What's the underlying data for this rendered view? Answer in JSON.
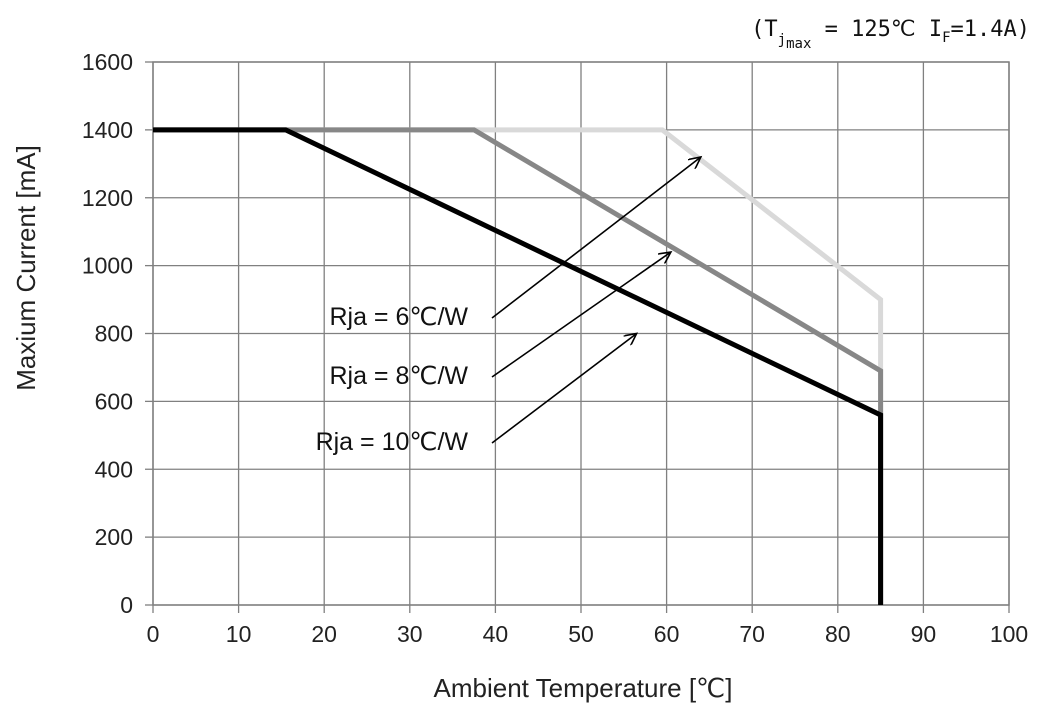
{
  "chart_data": {
    "type": "line",
    "title": "",
    "condition": {
      "open": "(T",
      "j": "j",
      "max": "max",
      "rest": " = 125℃ I",
      "f": "F",
      "end": "=1.4A)"
    },
    "xlabel": "Ambient Temperature [℃]",
    "ylabel": "Maxium Current [mA]",
    "xlim": [
      0,
      100
    ],
    "ylim": [
      0,
      1600
    ],
    "xticks": [
      0,
      10,
      20,
      30,
      40,
      50,
      60,
      70,
      80,
      90,
      100
    ],
    "yticks": [
      0,
      200,
      400,
      600,
      800,
      1000,
      1200,
      1400,
      1600
    ],
    "grid": true,
    "series": [
      {
        "name": "Rja = 6℃/W",
        "color": "#d9d9d9",
        "points": [
          [
            0,
            1400
          ],
          [
            59.5,
            1400
          ],
          [
            85,
            900
          ],
          [
            85,
            0
          ]
        ]
      },
      {
        "name": "Rja = 8℃/W",
        "color": "#878787",
        "points": [
          [
            0,
            1400
          ],
          [
            37.5,
            1400
          ],
          [
            85,
            690
          ],
          [
            85,
            0
          ]
        ]
      },
      {
        "name": "Rja = 10℃/W",
        "color": "#000000",
        "points": [
          [
            0,
            1400
          ],
          [
            15.5,
            1400
          ],
          [
            85,
            560
          ],
          [
            85,
            0
          ]
        ]
      }
    ],
    "annotations": [
      {
        "text": "Rja = 6℃/W",
        "arrow_to": [
          64,
          1320
        ]
      },
      {
        "text": "Rja = 8℃/W",
        "arrow_to": [
          60.5,
          1040
        ]
      },
      {
        "text": "Rja = 10℃/W",
        "arrow_to": [
          56.5,
          800
        ]
      }
    ]
  }
}
